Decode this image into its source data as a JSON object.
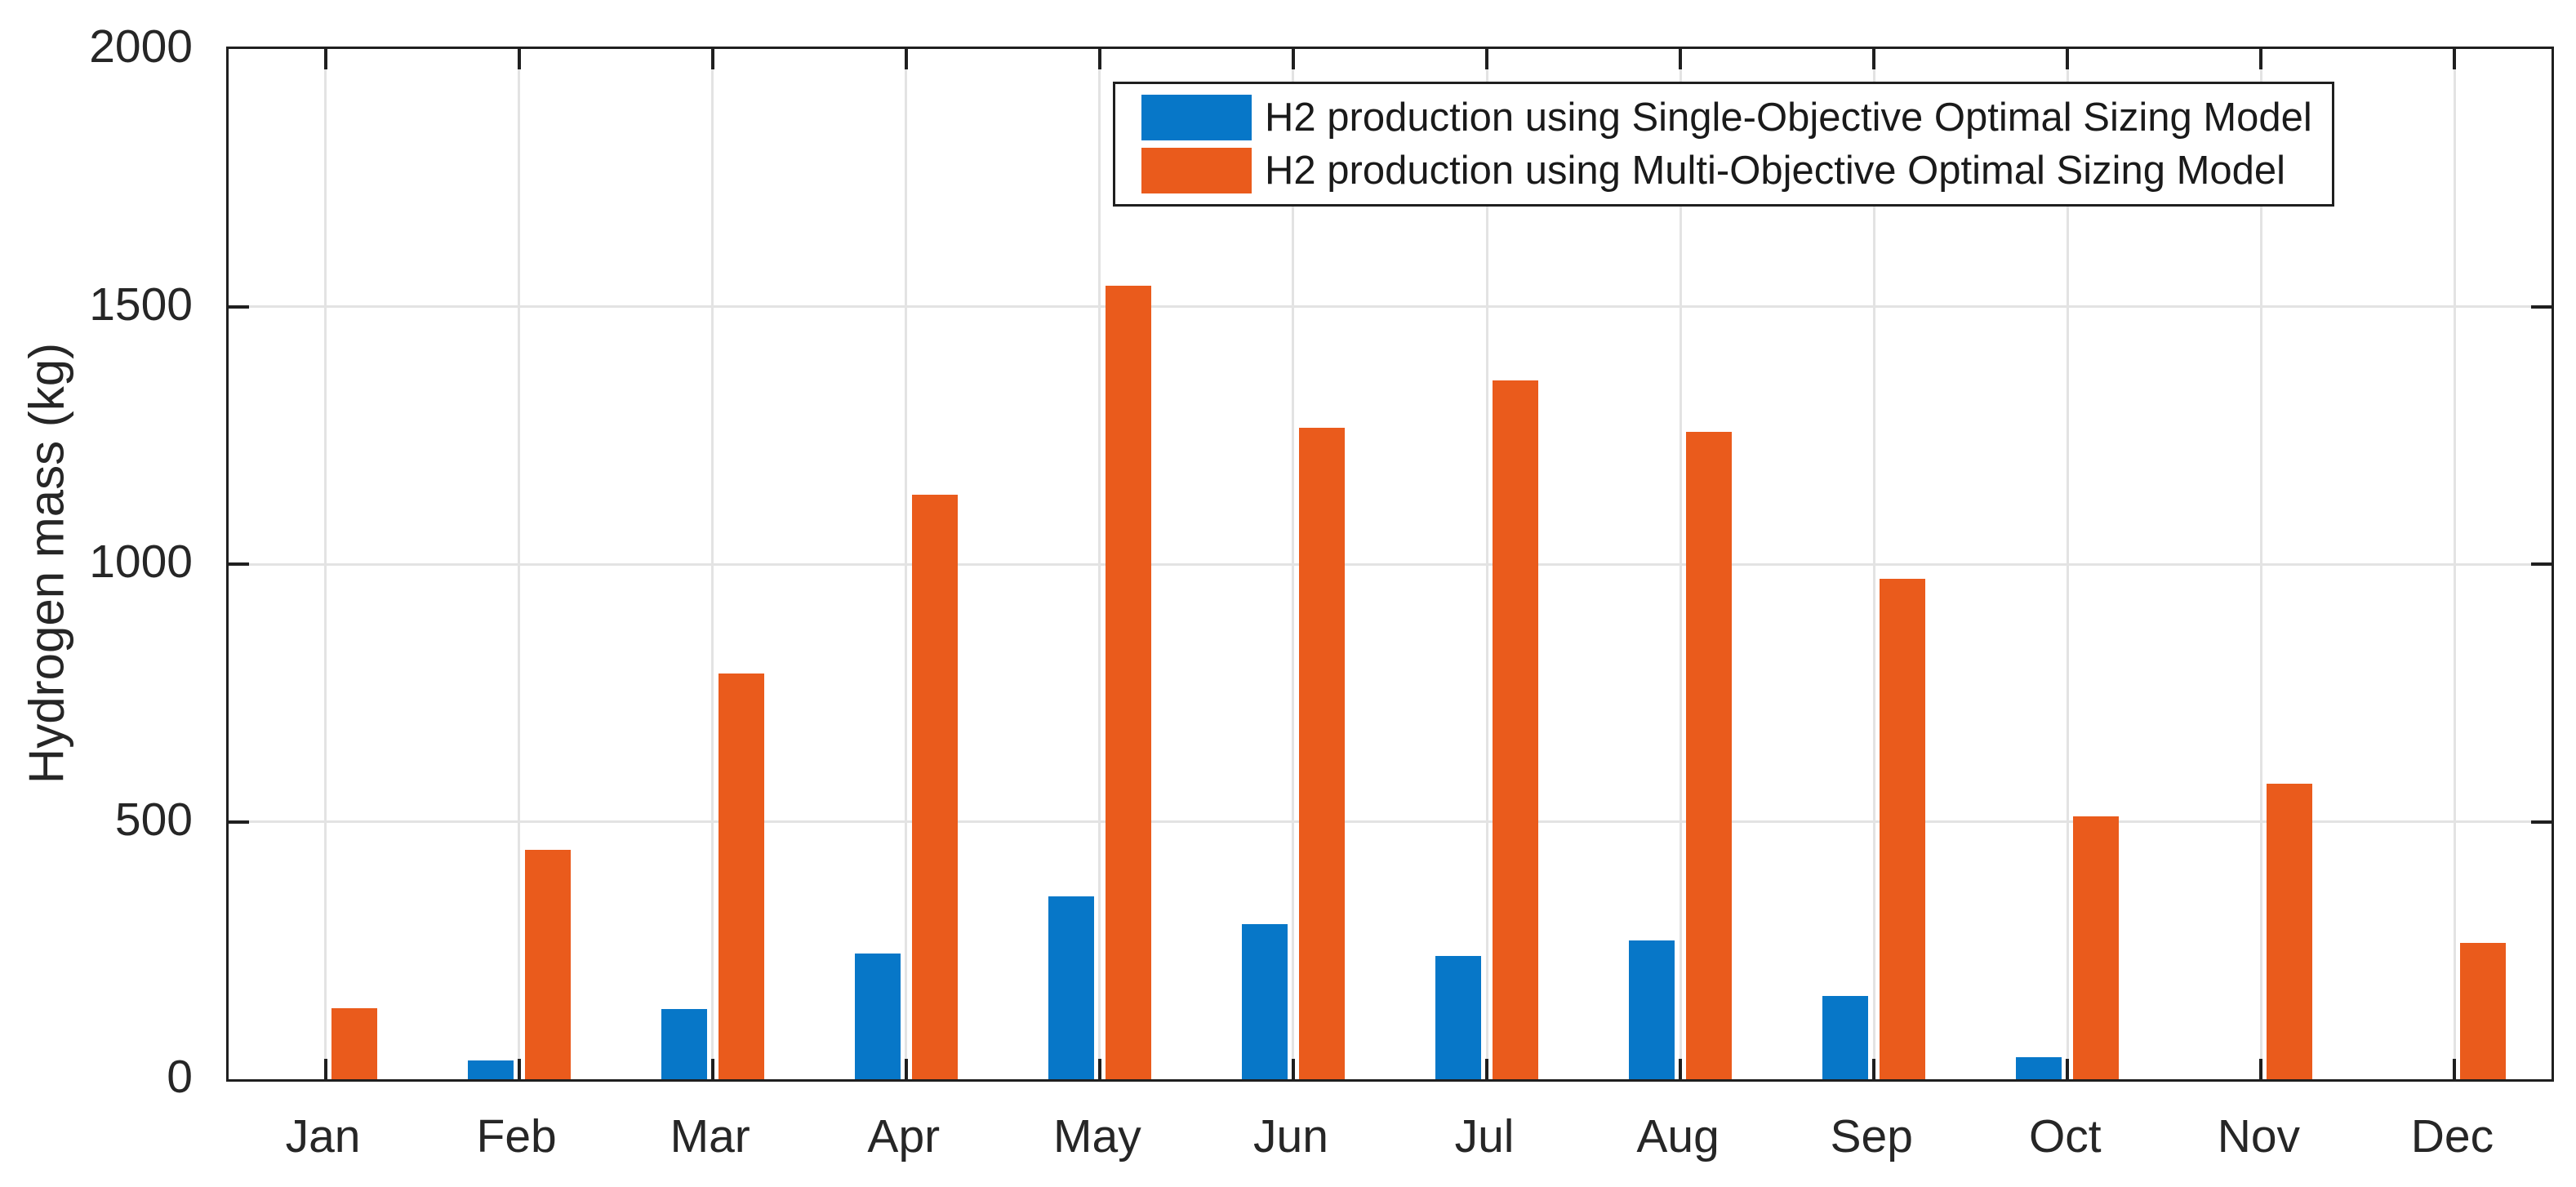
{
  "chart_data": {
    "type": "bar",
    "title": "",
    "xlabel": "",
    "ylabel": "Hydrogen mass (kg)",
    "categories": [
      "Jan",
      "Feb",
      "Mar",
      "Apr",
      "May",
      "Jun",
      "Jul",
      "Aug",
      "Sep",
      "Oct",
      "Nov",
      "Dec"
    ],
    "series": [
      {
        "name": "H2 production using Single-Objective Optimal Sizing Model",
        "color": "#0777C8",
        "values": [
          0,
          37,
          137,
          244,
          355,
          301,
          240,
          270,
          161,
          43,
          0,
          0
        ]
      },
      {
        "name": "H2 production using Multi-Objective Optimal Sizing Model",
        "color": "#EA5B1C",
        "values": [
          138,
          445,
          787,
          1134,
          1541,
          1265,
          1356,
          1257,
          972,
          511,
          573,
          265
        ]
      }
    ],
    "ylim": [
      0,
      2000
    ],
    "yticks": [
      0,
      500,
      1000,
      1500,
      2000
    ],
    "grid": true,
    "legend_position": "top-right",
    "axis_color": "#1f1f1f",
    "grid_color": "#e3e3e3",
    "plot_background": "#ffffff"
  }
}
